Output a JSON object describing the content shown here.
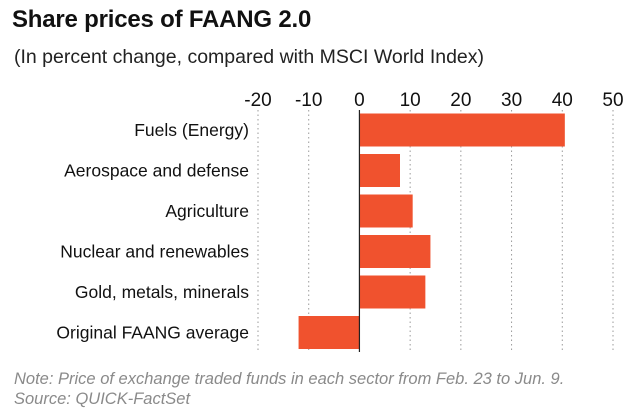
{
  "chart_data": {
    "type": "bar",
    "orientation": "horizontal",
    "title": "Share prices of FAANG 2.0",
    "subtitle": "(In percent change, compared with MSCI World Index)",
    "categories": [
      "Fuels (Energy)",
      "Aerospace and defense",
      "Agriculture",
      "Nuclear and renewables",
      "Gold, metals, minerals",
      "Original FAANG average"
    ],
    "values": [
      40.5,
      8,
      10.5,
      14,
      13,
      -12
    ],
    "xlim": [
      -20,
      50
    ],
    "xticks": [
      "-20",
      "-10",
      "0",
      "10",
      "20",
      "30",
      "40",
      "50"
    ],
    "xtick_values": [
      -20,
      -10,
      0,
      10,
      20,
      30,
      40,
      50
    ],
    "grid": "vertical dotted",
    "bar_color": "#f0522e",
    "note": "Note: Price of exchange traded funds in each sector from Feb. 23 to Jun. 9.",
    "source": "Source: QUICK-FactSet"
  }
}
